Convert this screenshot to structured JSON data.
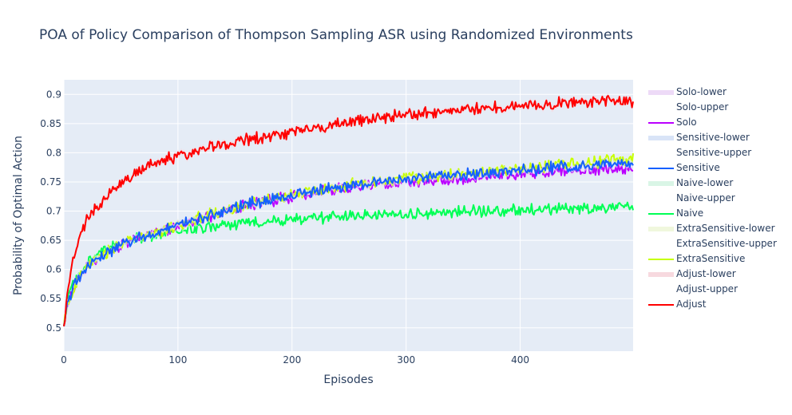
{
  "chart_data": {
    "type": "line",
    "title": "POA of Policy Comparison of Thompson Sampling ASR using Randomized Environments",
    "xlabel": "Episodes",
    "ylabel": "Probability of Optimal Action",
    "xlim": [
      0,
      499
    ],
    "ylim": [
      0.46,
      0.925
    ],
    "x_ticks": [
      0,
      100,
      200,
      300,
      400
    ],
    "y_ticks": [
      0.5,
      0.55,
      0.6,
      0.65,
      0.7,
      0.75,
      0.8,
      0.85,
      0.9
    ],
    "x_tick_labels": [
      "0",
      "100",
      "200",
      "300",
      "400"
    ],
    "y_tick_labels": [
      "0.5",
      "0.55",
      "0.6",
      "0.65",
      "0.7",
      "0.75",
      "0.8",
      "0.85",
      "0.9"
    ],
    "grid": true,
    "legend_position": "right",
    "legend": [
      {
        "name": "Solo-lower",
        "color": "#eddaf7",
        "kind": "band"
      },
      {
        "name": "Solo-upper",
        "color": "",
        "kind": "none"
      },
      {
        "name": "Solo",
        "color": "#bb00ff",
        "kind": "line"
      },
      {
        "name": "Sensitive-lower",
        "color": "#d9e4f7",
        "kind": "band"
      },
      {
        "name": "Sensitive-upper",
        "color": "",
        "kind": "none"
      },
      {
        "name": "Sensitive",
        "color": "#1560ff",
        "kind": "line"
      },
      {
        "name": "Naive-lower",
        "color": "#d9f5e6",
        "kind": "band"
      },
      {
        "name": "Naive-upper",
        "color": "",
        "kind": "none"
      },
      {
        "name": "Naive",
        "color": "#00ff55",
        "kind": "line"
      },
      {
        "name": "ExtraSensitive-lower",
        "color": "#f0f7dd",
        "kind": "band"
      },
      {
        "name": "ExtraSensitive-upper",
        "color": "",
        "kind": "none"
      },
      {
        "name": "ExtraSensitive",
        "color": "#c6ff00",
        "kind": "line"
      },
      {
        "name": "Adjust-lower",
        "color": "#f7d9df",
        "kind": "band"
      },
      {
        "name": "Adjust-upper",
        "color": "",
        "kind": "none"
      },
      {
        "name": "Adjust",
        "color": "#ff0000",
        "kind": "line"
      }
    ],
    "series": [
      {
        "name": "Naive",
        "color": "#00ff55",
        "band_color": "#d9f5e6",
        "x": [
          0,
          3,
          10,
          20,
          30,
          40,
          50,
          75,
          100,
          125,
          150,
          175,
          200,
          250,
          300,
          350,
          400,
          450,
          499
        ],
        "values": [
          0.5,
          0.55,
          0.58,
          0.61,
          0.625,
          0.635,
          0.645,
          0.658,
          0.665,
          0.672,
          0.677,
          0.682,
          0.686,
          0.692,
          0.695,
          0.699,
          0.702,
          0.705,
          0.705
        ]
      },
      {
        "name": "Solo",
        "color": "#bb00ff",
        "band_color": "#eddaf7",
        "x": [
          0,
          3,
          10,
          20,
          30,
          40,
          50,
          75,
          100,
          125,
          150,
          175,
          200,
          250,
          300,
          350,
          400,
          450,
          499
        ],
        "values": [
          0.5,
          0.54,
          0.575,
          0.605,
          0.62,
          0.632,
          0.642,
          0.66,
          0.673,
          0.69,
          0.705,
          0.716,
          0.725,
          0.74,
          0.749,
          0.757,
          0.764,
          0.77,
          0.775
        ]
      },
      {
        "name": "ExtraSensitive",
        "color": "#c6ff00",
        "band_color": "#f0f7dd",
        "x": [
          0,
          3,
          10,
          20,
          30,
          40,
          50,
          75,
          100,
          125,
          150,
          175,
          200,
          250,
          300,
          350,
          400,
          450,
          499
        ],
        "values": [
          0.5,
          0.54,
          0.575,
          0.605,
          0.62,
          0.632,
          0.642,
          0.66,
          0.675,
          0.692,
          0.707,
          0.718,
          0.728,
          0.745,
          0.755,
          0.764,
          0.773,
          0.782,
          0.79
        ]
      },
      {
        "name": "Sensitive",
        "color": "#1560ff",
        "band_color": "#d9e4f7",
        "x": [
          0,
          3,
          10,
          20,
          30,
          40,
          50,
          75,
          100,
          125,
          150,
          175,
          200,
          250,
          300,
          350,
          400,
          450,
          499
        ],
        "values": [
          0.5,
          0.54,
          0.575,
          0.605,
          0.62,
          0.632,
          0.642,
          0.66,
          0.675,
          0.692,
          0.707,
          0.718,
          0.728,
          0.745,
          0.755,
          0.763,
          0.77,
          0.777,
          0.782
        ]
      },
      {
        "name": "Adjust",
        "color": "#ff0000",
        "band_color": "#f7d9df",
        "x": [
          0,
          3,
          6,
          10,
          15,
          20,
          25,
          30,
          40,
          50,
          60,
          75,
          100,
          125,
          150,
          175,
          200,
          250,
          300,
          350,
          400,
          450,
          499
        ],
        "values": [
          0.5,
          0.56,
          0.6,
          0.63,
          0.66,
          0.685,
          0.7,
          0.71,
          0.73,
          0.748,
          0.76,
          0.78,
          0.795,
          0.808,
          0.818,
          0.828,
          0.835,
          0.852,
          0.865,
          0.874,
          0.881,
          0.886,
          0.888
        ]
      }
    ]
  }
}
